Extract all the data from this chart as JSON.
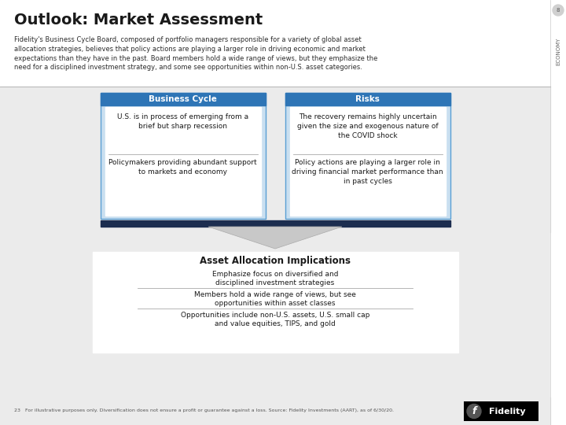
{
  "title": "Outlook: Market Assessment",
  "subtitle": "Fidelity's Business Cycle Board, composed of portfolio managers responsible for a variety of global asset\nallocation strategies, believes that policy actions are playing a larger role in driving economic and market\nexpectations than they have in the past. Board members hold a wide range of views, but they emphasize the\nneed for a disciplined investment strategy, and some see opportunities within non-U.S. asset categories.",
  "bc_title": "Business Cycle",
  "bc_item1": "U.S. is in process of emerging from a\nbrief but sharp recession",
  "bc_item2": "Policymakers providing abundant support\nto markets and economy",
  "risks_title": "Risks",
  "risks_item1": "The recovery remains highly uncertain\ngiven the size and exogenous nature of\nthe COVID shock",
  "risks_item2": "Policy actions are playing a larger role in\ndriving financial market performance than\nin past cycles",
  "aai_title": "Asset Allocation Implications",
  "aai_item1": "Emphasize focus on diversified and\ndisciplined investment strategies",
  "aai_item2": "Members hold a wide range of views, but see\nopportunities within asset classes",
  "aai_item3": "Opportunities include non-U.S. assets, U.S. small cap\nand value equities, TIPS, and gold",
  "footer": "23   For illustrative purposes only. Diversification does not ensure a profit or guarantee against a loss. Source: Fidelity Investments (AART), as of 6/30/20.",
  "economy_label": "ECONOMY",
  "page_num": "8",
  "bg_color": "#ebebeb",
  "white": "#ffffff",
  "header_bg": "#ffffff",
  "box_outer_bg": "#c9dff0",
  "box_header_color": "#2e75b6",
  "box_border_color": "#5a9fd4",
  "box_inner_bg": "#ffffff",
  "dark_bar_color": "#1c2d4f",
  "arrow_color": "#c8c8c8",
  "line_color": "#aaaaaa",
  "title_color": "#1a1a1a",
  "text_color": "#1a1a1a",
  "subtitle_color": "#2c2c2c",
  "econ_text_color": "#666666",
  "footer_color": "#555555"
}
